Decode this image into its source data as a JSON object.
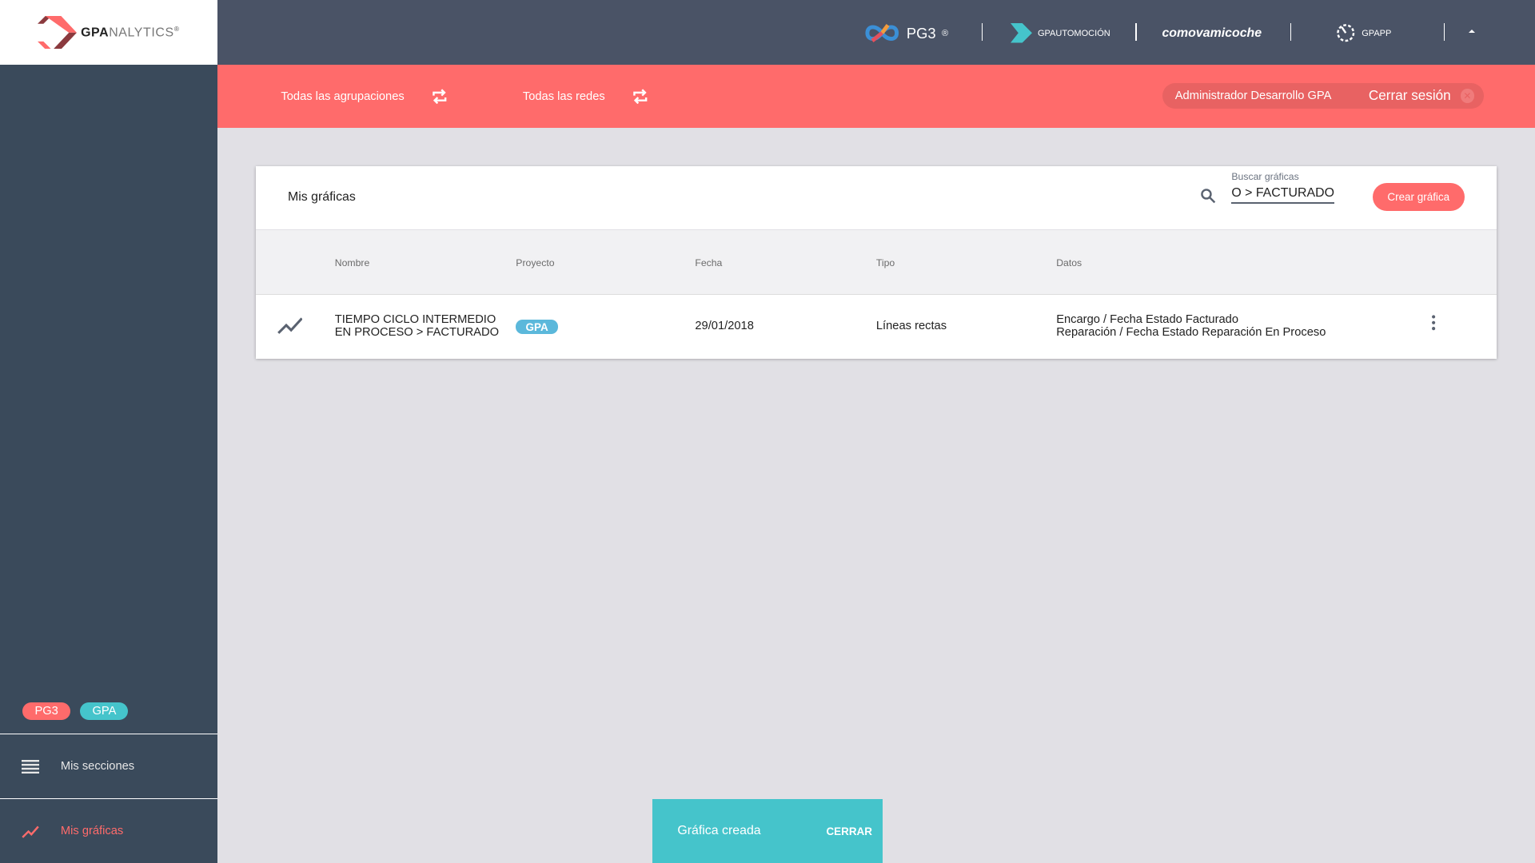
{
  "logo": {
    "brand_bold": "GPA",
    "brand_light": "NALYTICS",
    "reg": "®"
  },
  "topbar": {
    "brands": [
      "PG3",
      "GPAUTOMOCIÓN",
      "comovamicoche",
      "GPAPP"
    ],
    "reg": "®"
  },
  "filters": {
    "groups": "Todas las agrupaciones",
    "networks": "Todas las redes"
  },
  "user": {
    "name": "Administrador Desarrollo GPA",
    "logout": "Cerrar sesión"
  },
  "card": {
    "title": "Mis gráficas",
    "search_label": "Buscar gráficas",
    "search_value": "TIEMPO CICLO INTERMEDIO EN PROCESO > FACTURADO",
    "create": "Crear gráfica"
  },
  "table": {
    "headers": [
      "Nombre",
      "Proyecto",
      "Fecha",
      "Tipo",
      "Datos"
    ],
    "rows": [
      {
        "name": "TIEMPO CICLO INTERMEDIO EN PROCESO > FACTURADO",
        "project": "GPA",
        "date": "29/01/2018",
        "type": "Líneas rectas",
        "data": [
          "Encargo / Fecha Estado Facturado",
          "Reparación / Fecha Estado Reparación En Proceso"
        ]
      }
    ]
  },
  "sidebar": {
    "projects": [
      {
        "label": "PG3",
        "color": "#ff6b6b"
      },
      {
        "label": "GPA",
        "color": "#45c4cb"
      }
    ],
    "items": [
      {
        "label": "Mis secciones",
        "icon": "menu-icon"
      },
      {
        "label": "Mis gráficas",
        "icon": "chart-line-icon",
        "active": true
      }
    ]
  },
  "snackbar": {
    "message": "Gráfica creada",
    "action": "CERRAR"
  },
  "colors": {
    "accent": "#ff6b6b",
    "teal": "#45c4cb",
    "sidebar": "#3a4a5b",
    "topbar": "#4a5366"
  }
}
